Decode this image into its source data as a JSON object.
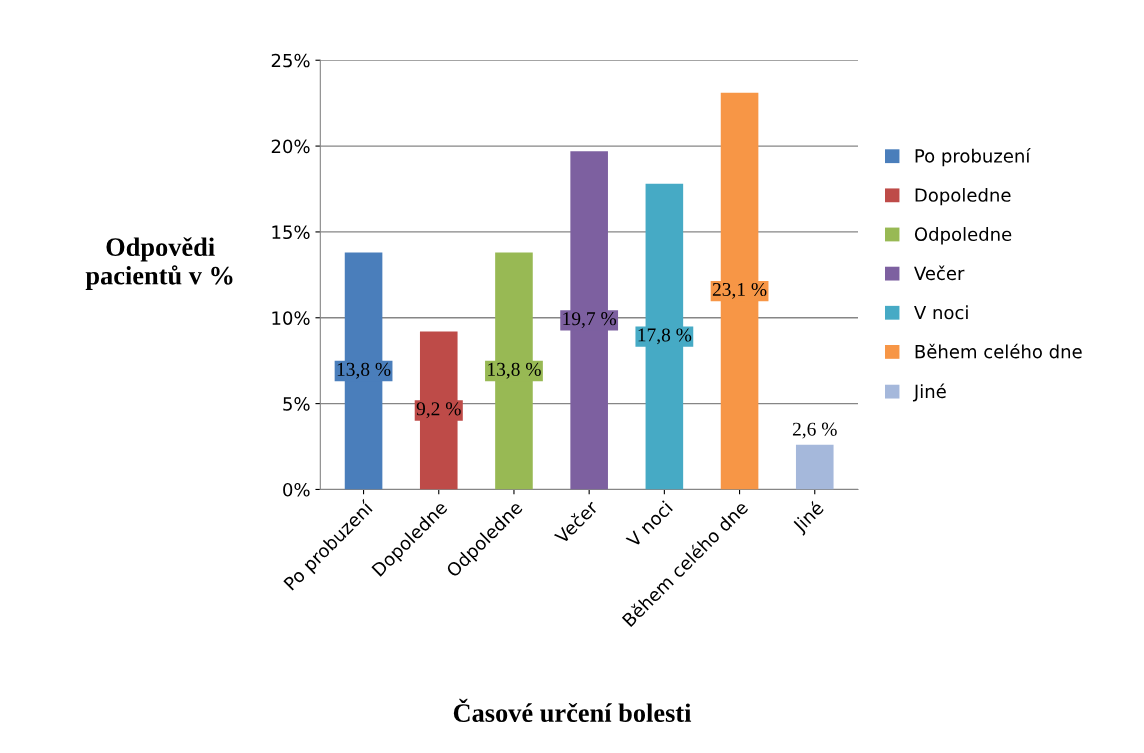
{
  "chart_data": {
    "type": "bar",
    "xlabel": "Časové určení bolesti",
    "ylabel": "Odpovědi\npacientů v %",
    "categories": [
      "Po probuzení",
      "Dopoledne",
      "Odpoledne",
      "Večer",
      "V noci",
      "Během celého dne",
      "Jiné"
    ],
    "series": [
      {
        "name": "Po probuzení",
        "color": "#4a7ebb",
        "values": [
          13.8,
          null,
          null,
          null,
          null,
          null,
          null
        ],
        "value_labels": [
          "13,8 %",
          null,
          null,
          null,
          null,
          null,
          null
        ]
      },
      {
        "name": "Dopoledne",
        "color": "#be4b48",
        "values": [
          null,
          9.2,
          null,
          null,
          null,
          null,
          null
        ],
        "value_labels": [
          null,
          "9,2 %",
          null,
          null,
          null,
          null,
          null
        ]
      },
      {
        "name": "Odpoledne",
        "color": "#98b954",
        "values": [
          null,
          null,
          13.8,
          null,
          null,
          null,
          null
        ],
        "value_labels": [
          null,
          null,
          "13,8 %",
          null,
          null,
          null,
          null
        ]
      },
      {
        "name": "Večer",
        "color": "#7d60a0",
        "values": [
          null,
          null,
          null,
          19.7,
          null,
          null,
          null
        ],
        "value_labels": [
          null,
          null,
          null,
          "19,7 %",
          null,
          null,
          null
        ]
      },
      {
        "name": "V noci",
        "color": "#46aac5",
        "values": [
          null,
          null,
          null,
          null,
          17.8,
          null,
          null
        ],
        "value_labels": [
          null,
          null,
          null,
          null,
          "17,8 %",
          null,
          null
        ]
      },
      {
        "name": "Během celého dne",
        "color": "#f79646",
        "values": [
          null,
          null,
          null,
          null,
          null,
          23.1,
          null
        ],
        "value_labels": [
          null,
          null,
          null,
          null,
          null,
          "23,1 %",
          null
        ]
      },
      {
        "name": "Jiné",
        "color": "#a5b8db",
        "values": [
          null,
          null,
          null,
          null,
          null,
          null,
          2.6
        ],
        "value_labels": [
          null,
          null,
          null,
          null,
          null,
          null,
          "2,6 %"
        ]
      }
    ],
    "ylim": [
      0,
      25
    ],
    "yticks": [
      {
        "value": 0,
        "label": "0%"
      },
      {
        "value": 5,
        "label": "5%"
      },
      {
        "value": 10,
        "label": "10%"
      },
      {
        "value": 15,
        "label": "15%"
      },
      {
        "value": 20,
        "label": "20%"
      },
      {
        "value": 25,
        "label": "25%"
      }
    ],
    "grid": "y",
    "legend": "right"
  }
}
